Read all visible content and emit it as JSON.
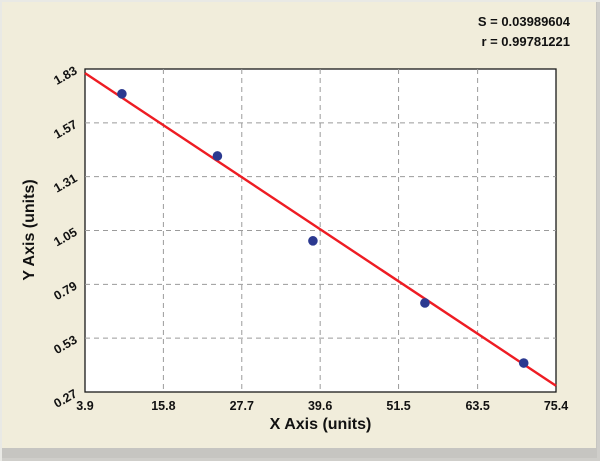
{
  "stats": {
    "s_label": "S = 0.03989604",
    "r_label": "r = 0.99781221"
  },
  "chart_data": {
    "type": "scatter",
    "title": "",
    "xlabel": "X Axis (units)",
    "ylabel": "Y Axis (units)",
    "xlim": [
      3.9,
      75.4
    ],
    "ylim": [
      0.27,
      1.83
    ],
    "x_ticks": [
      3.9,
      15.8,
      27.7,
      39.6,
      51.5,
      63.5,
      75.4
    ],
    "x_tick_labels": [
      "3.9",
      "15.8",
      "27.7",
      "39.6",
      "51.5",
      "63.5",
      "75.4"
    ],
    "y_ticks": [
      0.27,
      0.53,
      0.79,
      1.05,
      1.31,
      1.57,
      1.83
    ],
    "y_tick_labels": [
      "0.27",
      "0.53",
      "0.79",
      "1.05",
      "1.31",
      "1.57",
      "1.83"
    ],
    "grid": "dashed",
    "legend": "none",
    "points": [
      {
        "x": 9.5,
        "y": 1.71
      },
      {
        "x": 24.0,
        "y": 1.41
      },
      {
        "x": 38.5,
        "y": 1.0
      },
      {
        "x": 55.5,
        "y": 0.7
      },
      {
        "x": 70.5,
        "y": 0.41
      }
    ],
    "fit_line": {
      "x1": 3.9,
      "y1": 1.81,
      "x2": 75.4,
      "y2": 0.3
    },
    "fit_stats": {
      "S": 0.03989604,
      "r": 0.99781221
    },
    "colors": {
      "background": "#f1eddb",
      "plot_bg": "#ffffff",
      "grid": "#9b9b9b",
      "point": "#2b3990",
      "line": "#ee1c23",
      "frame": "#1a1a1a",
      "text": "#111111"
    }
  }
}
